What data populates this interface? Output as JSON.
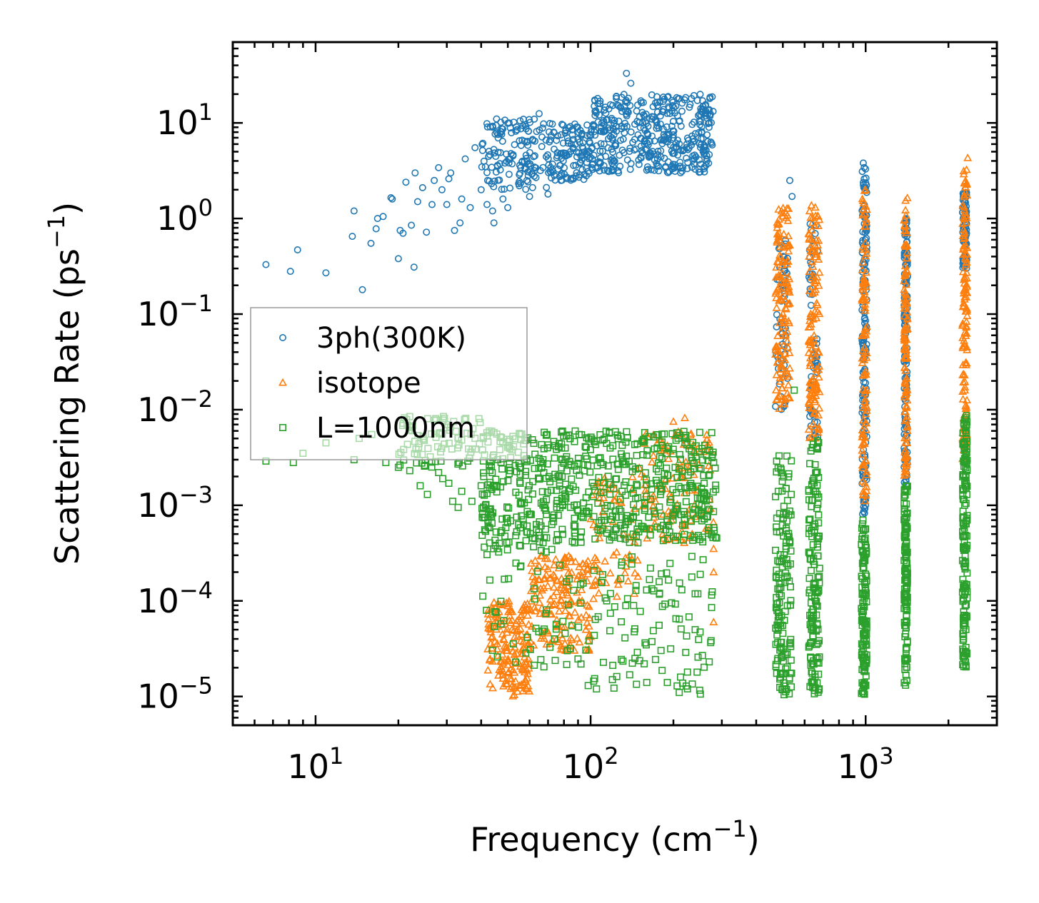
{
  "chart_data": {
    "type": "scatter",
    "xscale": "log",
    "yscale": "log",
    "xlim": [
      5,
      3000
    ],
    "ylim": [
      5e-06,
      70
    ],
    "xlabel": "Frequency (cm",
    "xlabel_sup": "−1",
    "xlabel_tail": ")",
    "ylabel": "Scattering Rate (ps",
    "ylabel_sup": "−1",
    "ylabel_tail": ")",
    "x_ticks": [
      {
        "value": 10,
        "base": "10",
        "exp": "1"
      },
      {
        "value": 100,
        "base": "10",
        "exp": "2"
      },
      {
        "value": 1000,
        "base": "10",
        "exp": "3"
      }
    ],
    "y_ticks": [
      {
        "value": 10,
        "base": "10",
        "exp": "1"
      },
      {
        "value": 1,
        "base": "10",
        "exp": "0"
      },
      {
        "value": 0.1,
        "base": "10",
        "exp": "−1"
      },
      {
        "value": 0.01,
        "base": "10",
        "exp": "−2"
      },
      {
        "value": 0.001,
        "base": "10",
        "exp": "−3"
      },
      {
        "value": 0.0001,
        "base": "10",
        "exp": "−4"
      },
      {
        "value": 1e-05,
        "base": "10",
        "exp": "−5"
      }
    ],
    "legend_position": "center-left",
    "series": [
      {
        "name": "3ph(300K)",
        "marker": "circle",
        "color": "#1f77b4",
        "points": [
          [
            6.6,
            0.33
          ],
          [
            8.1,
            0.28
          ],
          [
            8.6,
            0.47
          ],
          [
            10.9,
            0.27
          ],
          [
            13.6,
            0.65
          ],
          [
            13.8,
            1.2
          ],
          [
            14.8,
            0.18
          ],
          [
            15.9,
            0.55
          ],
          [
            16.6,
            0.78
          ],
          [
            16.8,
            1.0
          ],
          [
            17.6,
            1.05
          ],
          [
            18.8,
            1.65
          ],
          [
            19.0,
            1.6
          ],
          [
            20.0,
            0.38
          ],
          [
            20.3,
            0.75
          ],
          [
            20.8,
            0.7
          ],
          [
            21.3,
            2.4
          ],
          [
            22.3,
            0.85
          ],
          [
            22.8,
            0.31
          ],
          [
            23.0,
            3.0
          ],
          [
            23.5,
            1.5
          ],
          [
            24.5,
            2.1
          ],
          [
            25.3,
            0.72
          ],
          [
            26.5,
            1.4
          ],
          [
            27.0,
            2.5
          ],
          [
            28.0,
            3.4
          ],
          [
            28.8,
            2.0
          ],
          [
            30.0,
            1.4
          ],
          [
            30.5,
            2.6
          ],
          [
            31.0,
            3.0
          ],
          [
            32.0,
            0.75
          ],
          [
            33.5,
            0.9
          ],
          [
            34.0,
            1.6
          ],
          [
            35.0,
            4.2
          ],
          [
            36.5,
            1.3
          ],
          [
            38.0,
            5.5
          ],
          [
            40.0,
            2.0
          ],
          [
            42.0,
            1.4
          ],
          [
            44.0,
            1.2
          ],
          [
            44.5,
            0.9
          ],
          [
            45.5,
            11.0
          ],
          [
            48.0,
            1.6
          ],
          [
            50.0,
            1.3
          ],
          [
            55.0,
            2.2
          ],
          [
            60.0,
            1.7
          ],
          [
            65.0,
            12.5
          ],
          [
            70.0,
            1.8
          ],
          [
            78.0,
            2.5
          ],
          [
            85.0,
            6.0
          ],
          [
            135.0,
            33.0
          ],
          [
            140.0,
            26.0
          ],
          [
            210.0,
            18.0
          ],
          [
            265.0,
            7.5
          ],
          [
            530,
            2.5
          ],
          [
            540,
            1.7
          ],
          [
            980,
            3.8
          ],
          [
            1000,
            3.3
          ],
          [
            2300,
            2.0
          ]
        ],
        "bands": [
          {
            "x": [
              40,
              70
            ],
            "y": [
              2.0,
              11.0
            ],
            "n": 140
          },
          {
            "x": [
              70,
              100
            ],
            "y": [
              2.5,
              10.0
            ],
            "n": 120
          },
          {
            "x": [
              100,
              280
            ],
            "y": [
              3.0,
              20.0
            ],
            "n": 420
          },
          {
            "x": [
              470,
              520
            ],
            "y": [
              0.01,
              0.9
            ],
            "n": 60
          },
          {
            "x": [
              620,
              670
            ],
            "y": [
              0.005,
              0.9
            ],
            "n": 60
          },
          {
            "x": [
              970,
              1010
            ],
            "y": [
              0.0008,
              3.5
            ],
            "n": 160
          },
          {
            "x": [
              1380,
              1420
            ],
            "y": [
              0.0017,
              1.0
            ],
            "n": 140
          },
          {
            "x": [
              2250,
              2330
            ],
            "y": [
              0.3,
              1.9
            ],
            "n": 80
          }
        ]
      },
      {
        "name": "isotope",
        "marker": "triangle",
        "color": "#ff7f0e",
        "points": [
          [
            200,
            0.0075
          ],
          [
            220,
            0.0082
          ],
          [
            260,
            0.0045
          ],
          [
            280,
            0.00035
          ],
          [
            280,
            0.0002
          ],
          [
            280,
            6e-05
          ],
          [
            2350,
            4.3
          ]
        ],
        "bands": [
          {
            "x": [
              42,
              60
            ],
            "y": [
              1e-05,
              0.0001
            ],
            "n": 170
          },
          {
            "x": [
              60,
              100
            ],
            "y": [
              3e-05,
              0.0003
            ],
            "n": 170
          },
          {
            "x": [
              100,
              150
            ],
            "y": [
              0.0001,
              0.002
            ],
            "n": 70
          },
          {
            "x": [
              150,
              280
            ],
            "y": [
              0.0004,
              0.006
            ],
            "n": 120
          },
          {
            "x": [
              470,
              530
            ],
            "y": [
              0.01,
              1.3
            ],
            "n": 140
          },
          {
            "x": [
              620,
              680
            ],
            "y": [
              0.005,
              1.4
            ],
            "n": 130
          },
          {
            "x": [
              970,
              1010
            ],
            "y": [
              0.001,
              2.0
            ],
            "n": 110
          },
          {
            "x": [
              1380,
              1420
            ],
            "y": [
              0.002,
              1.8
            ],
            "n": 120
          },
          {
            "x": [
              2250,
              2340
            ],
            "y": [
              0.003,
              3.5
            ],
            "n": 130
          }
        ]
      },
      {
        "name": "L=1000nm",
        "marker": "square",
        "color": "#2ca02c",
        "points": [
          [
            6.6,
            0.0029
          ],
          [
            8.3,
            0.0028
          ],
          [
            9.0,
            0.0035
          ],
          [
            10.9,
            0.0045
          ],
          [
            13.8,
            0.003
          ],
          [
            14.4,
            0.005
          ],
          [
            16.0,
            0.0055
          ],
          [
            18.0,
            0.0028
          ],
          [
            20.0,
            0.0025
          ],
          [
            22.0,
            0.0023
          ],
          [
            24.0,
            0.0016
          ],
          [
            25.5,
            0.0013
          ],
          [
            28.0,
            0.0022
          ],
          [
            29.0,
            0.0019
          ],
          [
            30.5,
            0.0017
          ],
          [
            31.5,
            0.0011
          ],
          [
            33.0,
            0.00095
          ],
          [
            34.0,
            0.0014
          ],
          [
            37.0,
            0.0011
          ],
          [
            40.0,
            0.0016
          ],
          [
            98.0,
            1.3e-05
          ],
          [
            105.0,
            1.2e-05
          ],
          [
            120.0,
            1.5e-05
          ],
          [
            145.0,
            2.5e-05
          ],
          [
            160.0,
            1.4e-05
          ],
          [
            190.0,
            1.4e-05
          ],
          [
            210.0,
            1.1e-05
          ],
          [
            225.0,
            1.8e-05
          ],
          [
            240.0,
            5e-05
          ],
          [
            270.0,
            2.3e-05
          ],
          [
            550,
            0.016
          ]
        ],
        "bands": [
          {
            "x": [
              20,
              40
            ],
            "y": [
              0.0025,
              0.0085
            ],
            "n": 90
          },
          {
            "x": [
              40,
              290
            ],
            "y": [
              0.0004,
              0.006
            ],
            "n": 650
          },
          {
            "x": [
              40,
              100
            ],
            "y": [
              2e-05,
              0.0004
            ],
            "n": 70
          },
          {
            "x": [
              100,
              280
            ],
            "y": [
              1e-05,
              0.0003
            ],
            "n": 100
          },
          {
            "x": [
              470,
              540
            ],
            "y": [
              1e-05,
              0.0035
            ],
            "n": 150
          },
          {
            "x": [
              620,
              680
            ],
            "y": [
              1e-05,
              0.005
            ],
            "n": 150
          },
          {
            "x": [
              965,
              1010
            ],
            "y": [
              1e-05,
              0.0007
            ],
            "n": 130
          },
          {
            "x": [
              1380,
              1420
            ],
            "y": [
              1.2e-05,
              0.0017
            ],
            "n": 130
          },
          {
            "x": [
              2250,
              2340
            ],
            "y": [
              2e-05,
              0.009
            ],
            "n": 160
          }
        ]
      }
    ]
  }
}
